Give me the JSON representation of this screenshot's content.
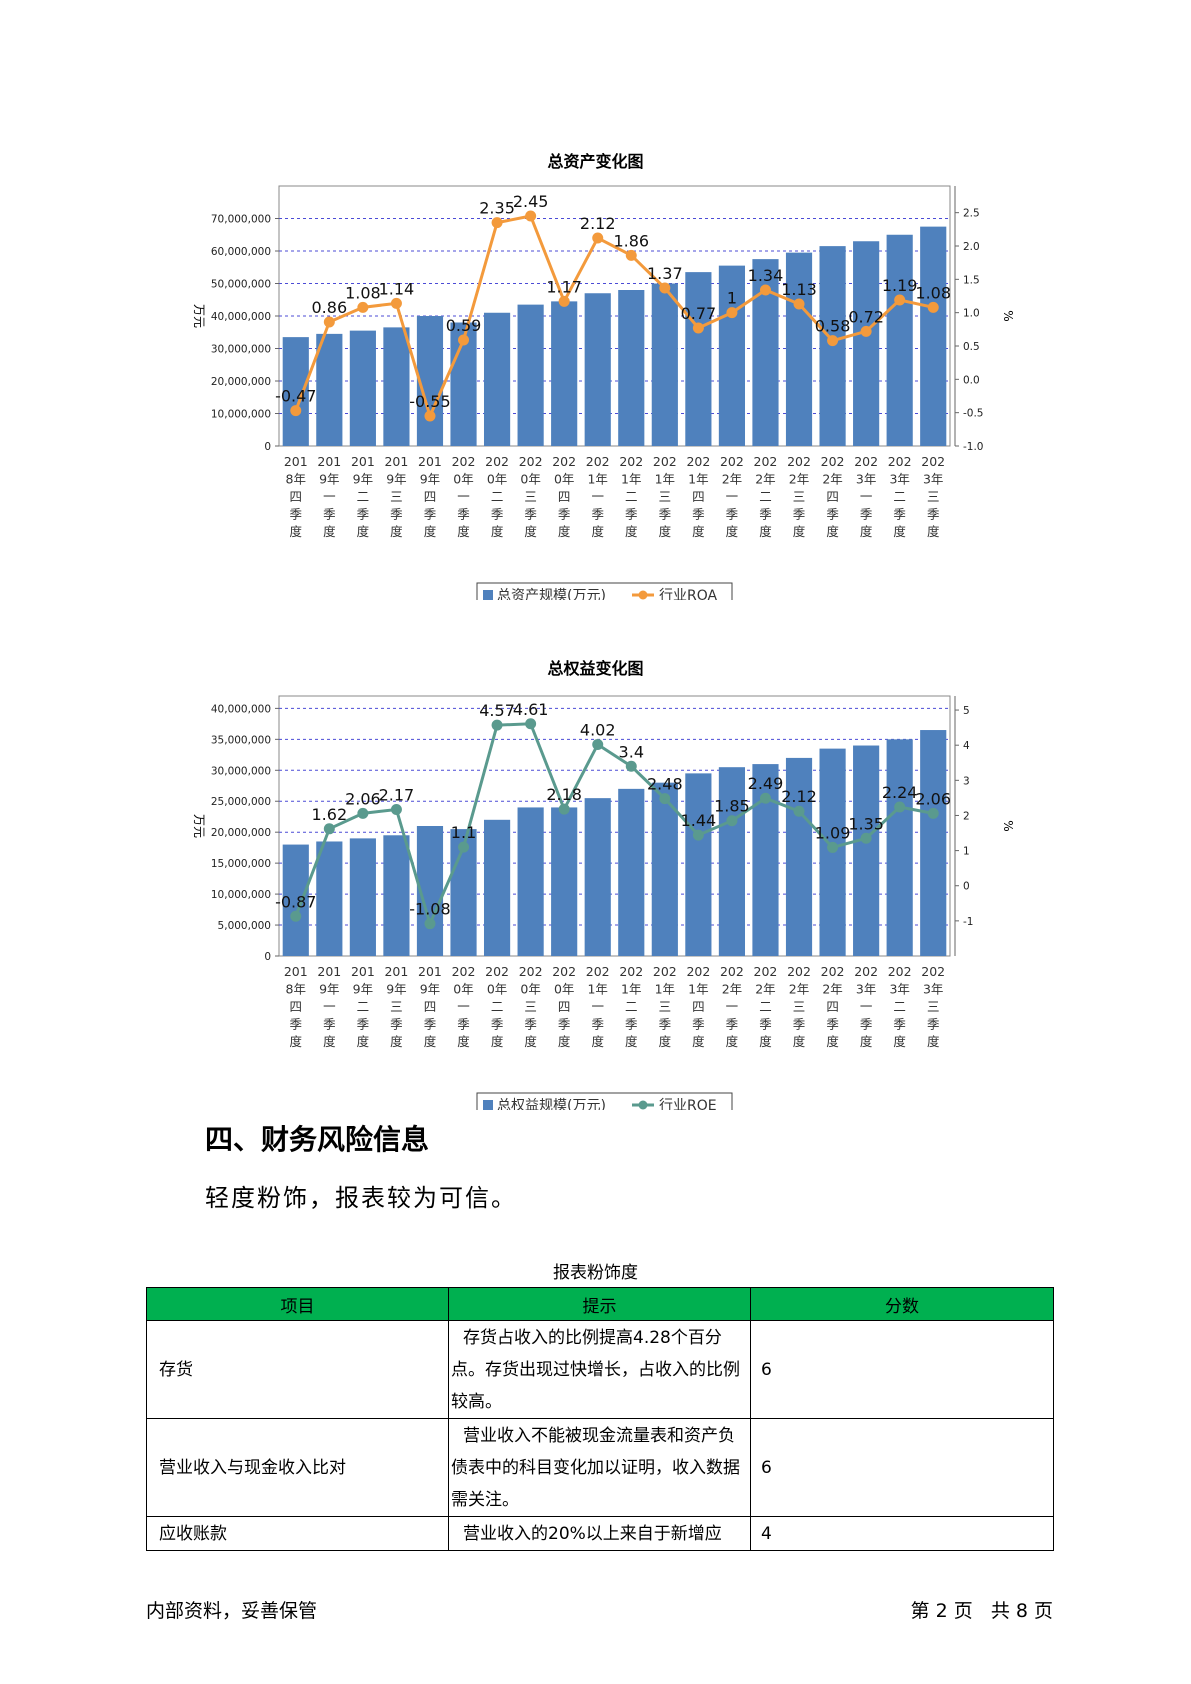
{
  "charts_text": {
    "assets_title": "总资产变化图",
    "equity_title": "总权益变化图"
  },
  "chart_data": [
    {
      "type": "bar",
      "title": "总资产变化图",
      "ylabel": "万元",
      "y2label": "%",
      "ylim": [
        0,
        80000000
      ],
      "y2lim": [
        -1.0,
        2.9
      ],
      "yticks": [
        "0",
        "10,000,000",
        "20,000,000",
        "30,000,000",
        "40,000,000",
        "50,000,000",
        "60,000,000",
        "70,000,000"
      ],
      "y2ticks": [
        "-1.0",
        "-0.5",
        "0.0",
        "0.5",
        "1.0",
        "1.5",
        "2.0",
        "2.5"
      ],
      "grid": true,
      "legend_position": "bottom",
      "categories": [
        "2018年四季度",
        "2019年一季度",
        "2019年二季度",
        "2019年三季度",
        "2019年四季度",
        "2020年一季度",
        "2020年二季度",
        "2020年三季度",
        "2020年四季度",
        "2021年一季度",
        "2021年二季度",
        "2021年三季度",
        "2021年四季度",
        "2022年一季度",
        "2022年二季度",
        "2022年三季度",
        "2022年四季度",
        "2023年一季度",
        "2023年二季度",
        "2023年三季度"
      ],
      "series": [
        {
          "name": "总资产规模(万元)",
          "kind": "bar",
          "axis": "left",
          "color": "#4f81bd",
          "values": [
            33500000,
            34500000,
            35500000,
            36500000,
            40000000,
            38000000,
            41000000,
            43500000,
            44500000,
            47000000,
            48000000,
            50000000,
            53500000,
            55500000,
            57500000,
            59500000,
            61500000,
            63000000,
            65000000,
            67500000
          ]
        },
        {
          "name": "行业ROA",
          "kind": "line",
          "axis": "right",
          "color": "#f39a3c",
          "values": [
            -0.47,
            0.86,
            1.08,
            1.14,
            -0.55,
            0.59,
            2.35,
            2.45,
            1.17,
            2.12,
            1.86,
            1.37,
            0.77,
            1,
            1.34,
            1.13,
            0.58,
            0.72,
            1.19,
            1.08
          ],
          "labels": [
            "-0.47",
            "0.86",
            "1.08",
            "1.14",
            "-0.55",
            "0.59",
            "2.35",
            "2.45",
            "1.17",
            "2.12",
            "1.86",
            "1.37",
            "0.77",
            "1",
            "1.34",
            "1.13",
            "0.58",
            "0.72",
            "1.19",
            "1.08"
          ]
        }
      ]
    },
    {
      "type": "bar",
      "title": "总权益变化图",
      "ylabel": "万元",
      "y2label": "%",
      "ylim": [
        0,
        42000000
      ],
      "y2lim": [
        -2.0,
        5.4
      ],
      "yticks": [
        "0",
        "5,000,000",
        "10,000,000",
        "15,000,000",
        "20,000,000",
        "25,000,000",
        "30,000,000",
        "35,000,000",
        "40,000,000"
      ],
      "y2ticks": [
        "-1",
        "0",
        "1",
        "2",
        "3",
        "4",
        "5"
      ],
      "grid": true,
      "legend_position": "bottom",
      "categories": [
        "2018年四季度",
        "2019年一季度",
        "2019年二季度",
        "2019年三季度",
        "2019年四季度",
        "2020年一季度",
        "2020年二季度",
        "2020年三季度",
        "2020年四季度",
        "2021年一季度",
        "2021年二季度",
        "2021年三季度",
        "2021年四季度",
        "2022年一季度",
        "2022年二季度",
        "2022年三季度",
        "2022年四季度",
        "2023年一季度",
        "2023年二季度",
        "2023年三季度"
      ],
      "series": [
        {
          "name": "总权益规模(万元)",
          "kind": "bar",
          "axis": "left",
          "color": "#4f81bd",
          "values": [
            18000000,
            18500000,
            19000000,
            19500000,
            21000000,
            20500000,
            22000000,
            24000000,
            24000000,
            25500000,
            27000000,
            28000000,
            29500000,
            30500000,
            31000000,
            32000000,
            33500000,
            34000000,
            35000000,
            36500000
          ]
        },
        {
          "name": "行业ROE",
          "kind": "line",
          "axis": "right",
          "color": "#5a9a8e",
          "values": [
            -0.87,
            1.62,
            2.06,
            2.17,
            -1.08,
            1.1,
            4.57,
            4.61,
            2.18,
            4.02,
            3.4,
            2.48,
            1.44,
            1.85,
            2.49,
            2.12,
            1.09,
            1.35,
            2.24,
            2.06
          ],
          "labels": [
            "-0.87",
            "1.62",
            "2.06",
            "2.17",
            "-1.08",
            "1.1",
            "4.57",
            "4.61",
            "2.18",
            "4.02",
            "3.4",
            "2.48",
            "1.44",
            "1.85",
            "2.49",
            "2.12",
            "1.09",
            "1.35",
            "2.24",
            "2.06"
          ]
        }
      ]
    }
  ],
  "section": {
    "heading": "四、财务风险信息",
    "body": "轻度粉饰，报表较为可信。"
  },
  "table": {
    "caption": "报表粉饰度",
    "headers": [
      "项目",
      "提示",
      "分数"
    ],
    "rows": [
      {
        "item": "存货",
        "hint": "存货占收入的比例提高4.28个百分点。存货出现过快增长，占收入的比例较高。",
        "score": "6"
      },
      {
        "item": "营业收入与现金收入比对",
        "hint": "营业收入不能被现金流量表和资产负债表中的科目变化加以证明，收入数据需关注。",
        "score": "6"
      },
      {
        "item": "应收账款",
        "hint": "营业收入的20%以上来自于新增应",
        "score": "4"
      }
    ]
  },
  "footer": {
    "left": "内部资料，妥善保管",
    "right": "第 2 页   共 8 页"
  }
}
